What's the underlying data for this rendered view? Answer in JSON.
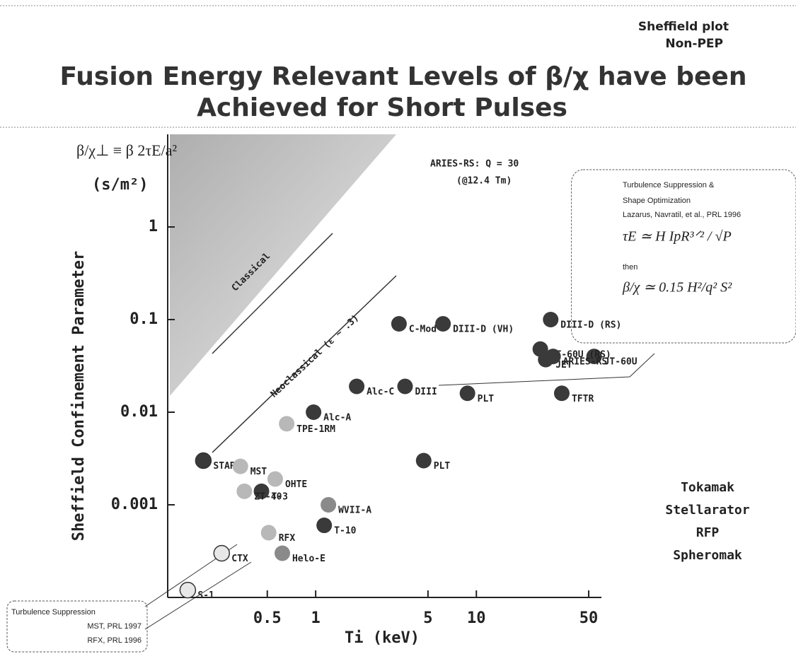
{
  "chart_data": {
    "type": "scatter",
    "corner_note": [
      "Sheffield plot",
      "Non-PEP"
    ],
    "title": [
      "Fusion Energy Relevant Levels of β/χ have been",
      "Achieved for Short Pulses"
    ],
    "y_definition": "β/χ⊥ ≡ β 2τE/a²",
    "y_unit": "(s/m²)",
    "ylabel": "Sheffield Confinement Parameter",
    "xlabel": "Ti (keV)",
    "xscale": "log",
    "yscale": "log",
    "xlim": [
      0.12,
      60
    ],
    "ylim": [
      0.0001,
      10
    ],
    "xticks": [
      0.5,
      1,
      5,
      10,
      50
    ],
    "yticks": [
      0.001,
      0.01,
      0.1,
      1
    ],
    "legend": "lower right",
    "annotations": [
      "Classical",
      "Neoclassical (ε ~ .3)",
      "ARIES-RS: Q = 30",
      "(@12.4 Tm)"
    ],
    "box_right": [
      "Turbulence Suppression &",
      "Shape Optimization",
      "Lazarus, Navratil, et al., PRL 1996",
      "τE ≃ H IpR³ᐟ² / √P",
      "then",
      "β/χ ≃ 0.15 H²/q² S²"
    ],
    "box_left": [
      "Turbulence Suppression",
      "MST, PRL 1997",
      "RFX, PRL 1996"
    ],
    "series": [
      {
        "name": "Tokamak",
        "color": "#3a3a3a",
        "labels": [
          "Alc-A",
          "Alc-C",
          "DIII",
          "C-Mod",
          "DIII-D (VH)",
          "PLT",
          "PLT",
          "TFTR",
          "JT-60U",
          "DIII-D (RS)",
          "JT-60U (RS)",
          "JET",
          "ARIES-RS",
          "T-3",
          "T-10",
          "START"
        ],
        "x": [
          0.97,
          1.8,
          3.6,
          3.3,
          6.2,
          8.8,
          4.7,
          34,
          54,
          29,
          25,
          27,
          30,
          0.46,
          1.13,
          0.2
        ],
        "y": [
          0.01,
          0.019,
          0.019,
          0.09,
          0.09,
          0.016,
          0.003,
          0.016,
          0.04,
          0.1,
          0.048,
          0.037,
          0.04,
          0.0014,
          0.0006,
          0.003
        ]
      },
      {
        "name": "Stellarator",
        "color": "#8a8a8a",
        "labels": [
          "WVII-A",
          "Helo-E"
        ],
        "x": [
          1.2,
          0.62
        ],
        "y": [
          0.001,
          0.0003
        ]
      },
      {
        "name": "RFP",
        "color": "#b8b8b8",
        "labels": [
          "TPE-1RM",
          "MST",
          "ZT-40",
          "OHTE",
          "RFX"
        ],
        "x": [
          0.66,
          0.34,
          0.36,
          0.56,
          0.51
        ],
        "y": [
          0.0075,
          0.0026,
          0.0014,
          0.0019,
          0.0005
        ]
      },
      {
        "name": "Spheromak",
        "color": "#e8e8e8",
        "labels": [
          "CTX",
          "S-1"
        ],
        "x": [
          0.26,
          0.16
        ],
        "y": [
          0.0003,
          0.00012
        ]
      }
    ]
  }
}
